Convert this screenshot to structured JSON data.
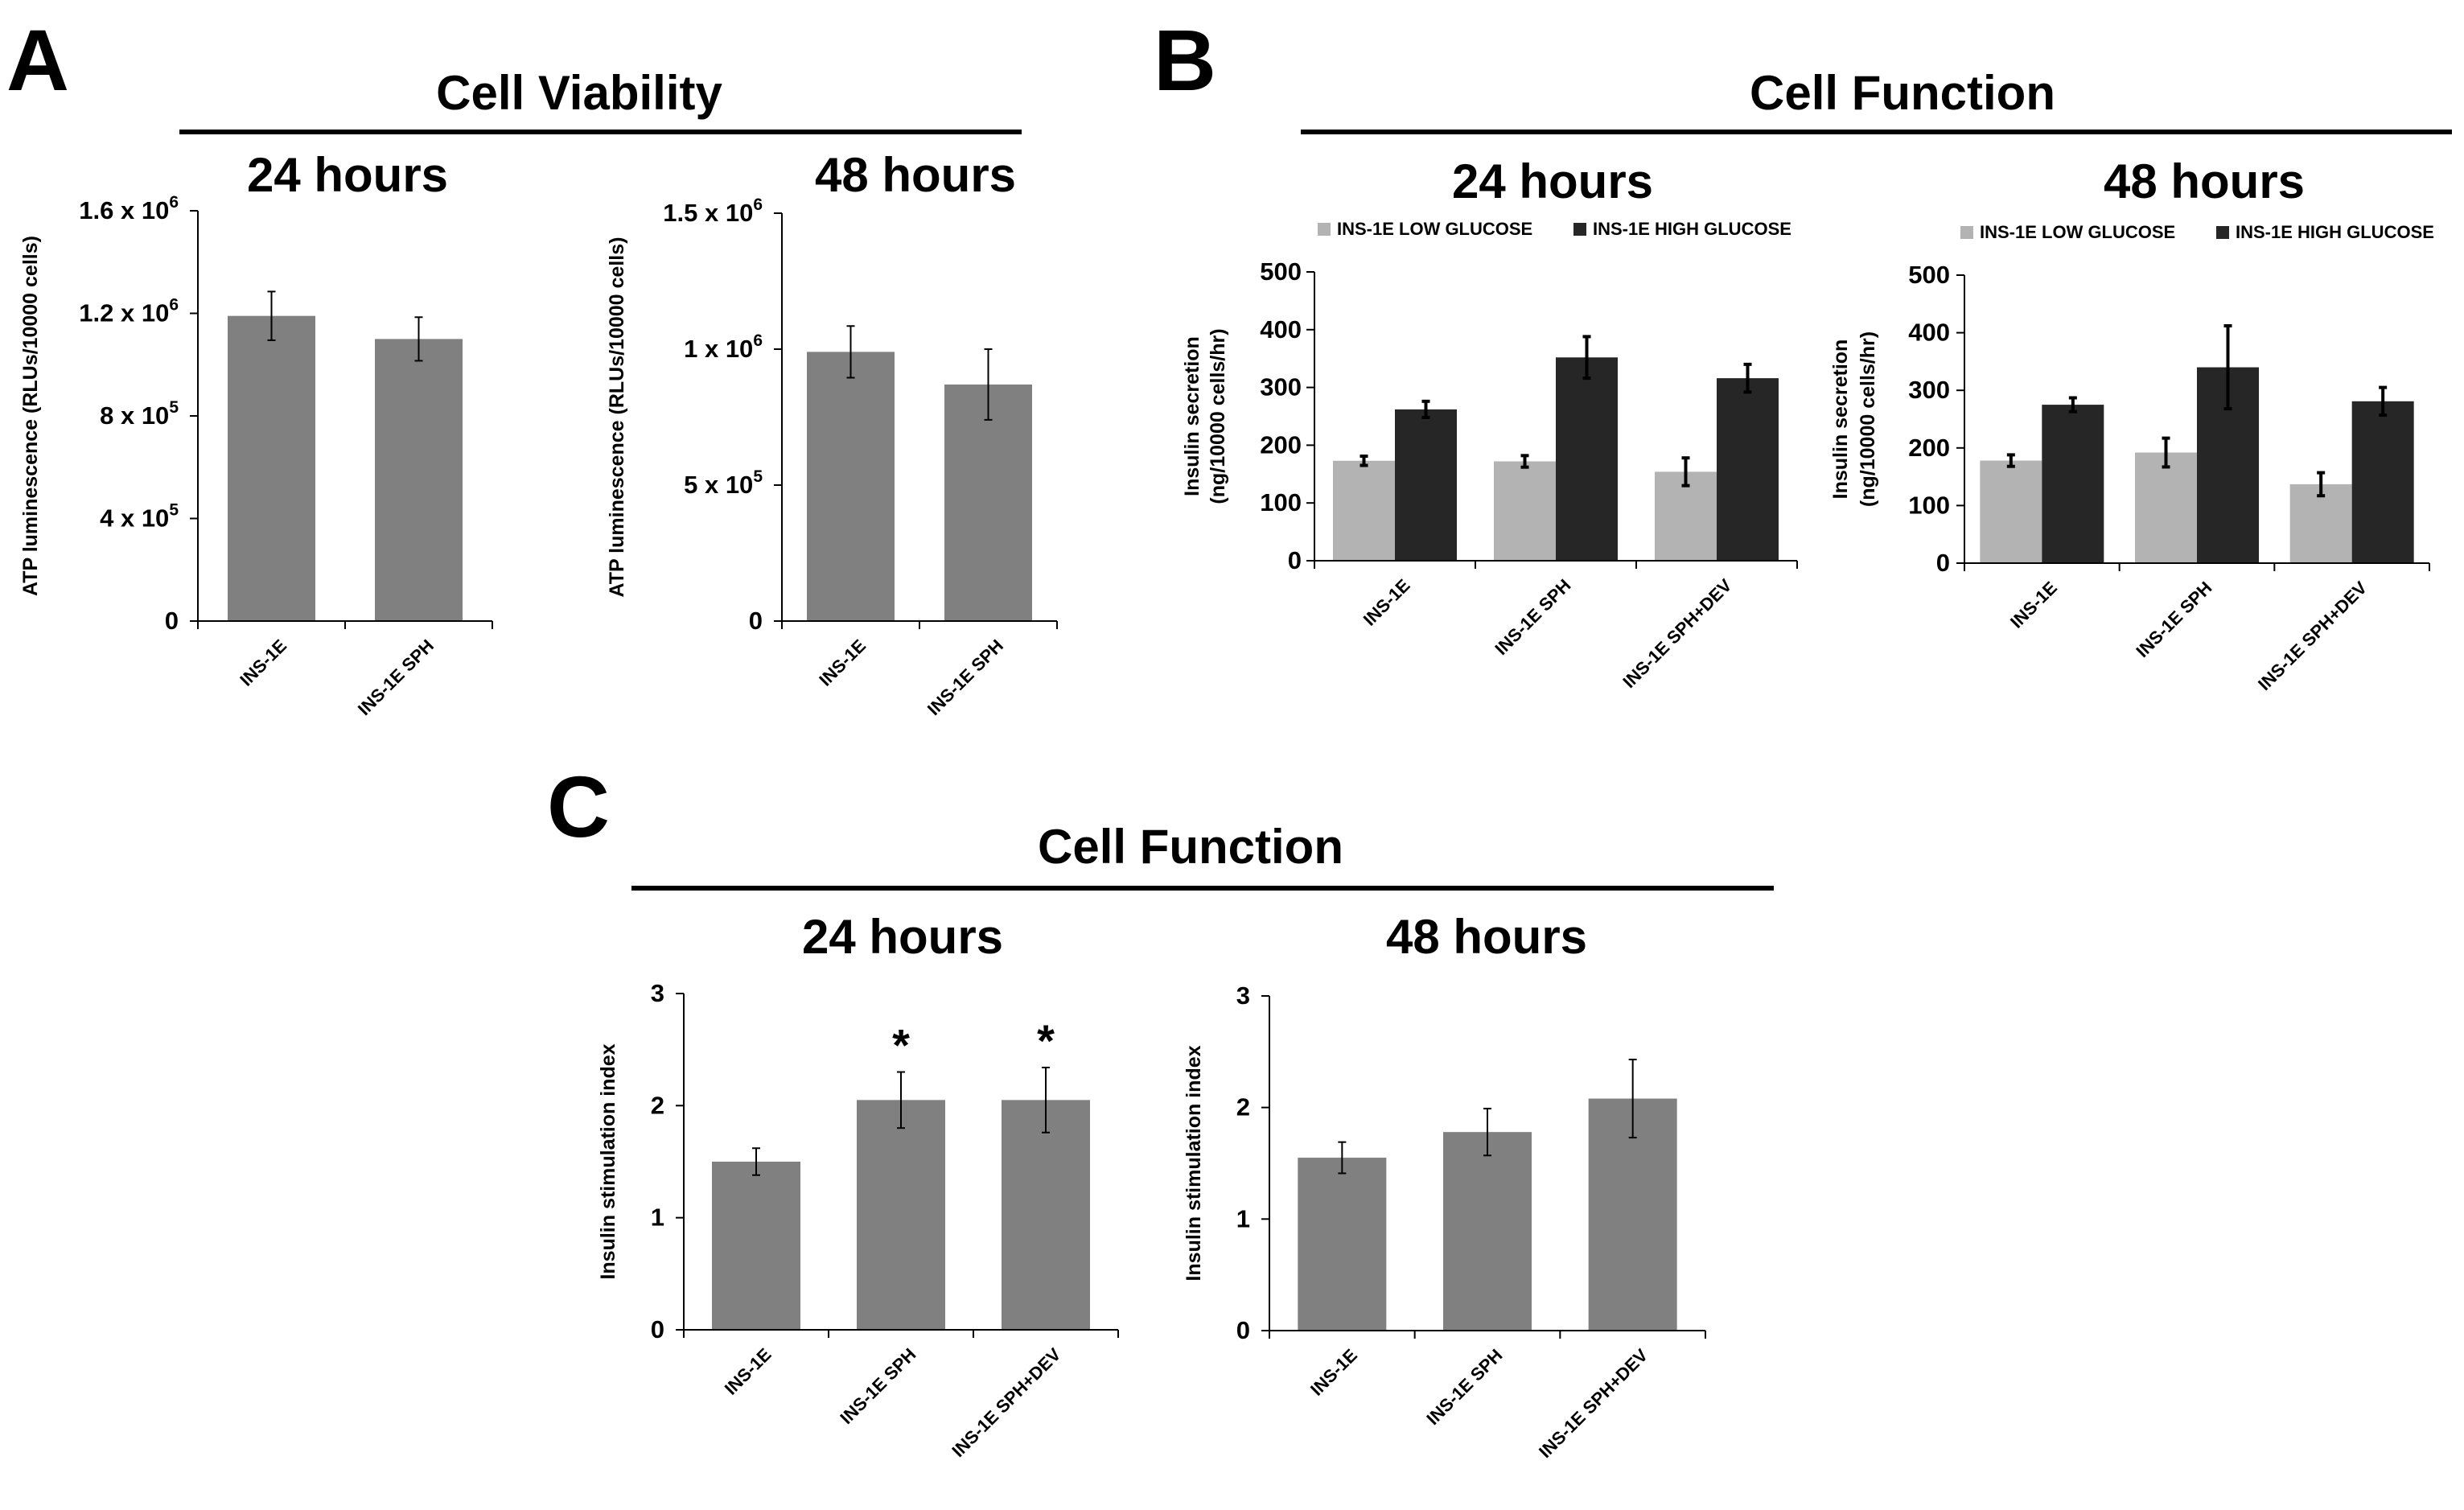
{
  "figure": {
    "panels": [
      {
        "id": "A",
        "letter": "A",
        "title": "Cell Viability"
      },
      {
        "id": "B",
        "letter": "B",
        "title": "Cell Function"
      },
      {
        "id": "C",
        "letter": "C",
        "title": "Cell Function"
      }
    ]
  },
  "colors": {
    "bar_gray": "#808080",
    "low_glucose": "#b3b3b3",
    "high_glucose": "#262626",
    "axis": "#000000"
  },
  "chart_data": [
    {
      "id": "A1",
      "panel": "A",
      "type": "bar",
      "title": "24 hours",
      "ylabel": "ATP luminescence (RLUs/10000 cells)",
      "categories": [
        "INS-1E",
        "INS-1E SPH"
      ],
      "ylim": [
        0,
        1600000
      ],
      "yticks": [
        {
          "value": 0,
          "label": "0"
        },
        {
          "value": 400000,
          "label": "4 x 10",
          "exp": "5"
        },
        {
          "value": 800000,
          "label": "8 x 10",
          "exp": "5"
        },
        {
          "value": 1200000,
          "label": "1.2 x 10",
          "exp": "6"
        },
        {
          "value": 1600000,
          "label": "1.6 x 10",
          "exp": "6"
        }
      ],
      "series": [
        {
          "values": [
            1190000,
            1100000
          ],
          "errors": [
            95000,
            85000
          ],
          "color": "#808080"
        }
      ]
    },
    {
      "id": "A2",
      "panel": "A",
      "type": "bar",
      "title": "48 hours",
      "ylabel": "ATP luminescence (RLUs/10000 cells)",
      "categories": [
        "INS-1E",
        "INS-1E SPH"
      ],
      "ylim": [
        0,
        1500000
      ],
      "yticks": [
        {
          "value": 0,
          "label": "0"
        },
        {
          "value": 500000,
          "label": "5 x 10",
          "exp": "5"
        },
        {
          "value": 1000000,
          "label": "1 x 10",
          "exp": "6"
        },
        {
          "value": 1500000,
          "label": "1.5 x 10",
          "exp": "6"
        }
      ],
      "series": [
        {
          "values": [
            990000,
            870000
          ],
          "errors": [
            95000,
            130000
          ],
          "color": "#808080"
        }
      ]
    },
    {
      "id": "B1",
      "panel": "B",
      "type": "bar",
      "title": "24 hours",
      "ylabel": [
        "Insulin secretion",
        "(ng/10000 cells/hr)"
      ],
      "categories": [
        "INS-1E",
        "INS-1E SPH",
        "INS-1E SPH+DEV"
      ],
      "ylim": [
        0,
        500
      ],
      "yticks": [
        {
          "value": 0,
          "label": "0"
        },
        {
          "value": 100,
          "label": "100"
        },
        {
          "value": 200,
          "label": "200"
        },
        {
          "value": 300,
          "label": "300"
        },
        {
          "value": 400,
          "label": "400"
        },
        {
          "value": 500,
          "label": "500"
        }
      ],
      "series": [
        {
          "name": "INS-1E LOW GLUCOSE",
          "values": [
            173,
            172,
            154
          ],
          "errors": [
            8,
            10,
            24
          ],
          "color": "#b3b3b3"
        },
        {
          "name": "INS-1E HIGH GLUCOSE",
          "values": [
            262,
            352,
            316
          ],
          "errors": [
            14,
            36,
            24
          ],
          "color": "#262626"
        }
      ]
    },
    {
      "id": "B2",
      "panel": "B",
      "type": "bar",
      "title": "48 hours",
      "ylabel": [
        "Insulin secretion",
        "(ng/10000 cells/hr)"
      ],
      "categories": [
        "INS-1E",
        "INS-1E SPH",
        "INS-1E SPH+DEV"
      ],
      "ylim": [
        0,
        500
      ],
      "yticks": [
        {
          "value": 0,
          "label": "0"
        },
        {
          "value": 100,
          "label": "100"
        },
        {
          "value": 200,
          "label": "200"
        },
        {
          "value": 300,
          "label": "300"
        },
        {
          "value": 400,
          "label": "400"
        },
        {
          "value": 500,
          "label": "500"
        }
      ],
      "series": [
        {
          "name": "INS-1E LOW GLUCOSE",
          "values": [
            178,
            192,
            137
          ],
          "errors": [
            10,
            25,
            20
          ],
          "color": "#b3b3b3"
        },
        {
          "name": "INS-1E HIGH GLUCOSE",
          "values": [
            275,
            340,
            281
          ],
          "errors": [
            12,
            72,
            24
          ],
          "color": "#262626"
        }
      ]
    },
    {
      "id": "C1",
      "panel": "C",
      "type": "bar",
      "title": "24 hours",
      "ylabel": "Insulin stimulation index",
      "categories": [
        "INS-1E",
        "INS-1E SPH",
        "INS-1E SPH+DEV"
      ],
      "ylim": [
        0,
        3
      ],
      "yticks": [
        {
          "value": 0,
          "label": "0"
        },
        {
          "value": 1,
          "label": "1"
        },
        {
          "value": 2,
          "label": "2"
        },
        {
          "value": 3,
          "label": "3"
        }
      ],
      "series": [
        {
          "values": [
            1.5,
            2.05,
            2.05
          ],
          "errors": [
            0.12,
            0.25,
            0.29
          ],
          "color": "#808080"
        }
      ],
      "annotations": [
        "",
        "*",
        "*"
      ]
    },
    {
      "id": "C2",
      "panel": "C",
      "type": "bar",
      "title": "48 hours",
      "ylabel": "Insulin stimulation index",
      "categories": [
        "INS-1E",
        "INS-1E SPH",
        "INS-1E SPH+DEV"
      ],
      "ylim": [
        0,
        3
      ],
      "yticks": [
        {
          "value": 0,
          "label": "0"
        },
        {
          "value": 1,
          "label": "1"
        },
        {
          "value": 2,
          "label": "2"
        },
        {
          "value": 3,
          "label": "3"
        }
      ],
      "series": [
        {
          "values": [
            1.55,
            1.78,
            2.08
          ],
          "errors": [
            0.14,
            0.21,
            0.35
          ],
          "color": "#808080"
        }
      ],
      "annotations": [
        "",
        "",
        ""
      ]
    }
  ]
}
